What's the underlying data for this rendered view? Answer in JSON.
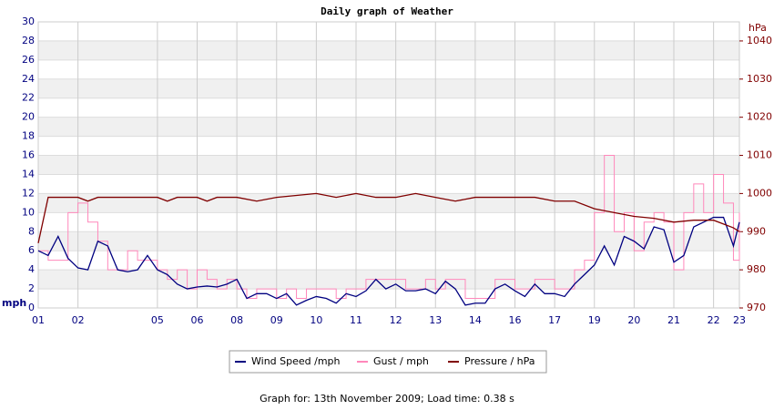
{
  "chart_data": {
    "type": "line",
    "title": "Daily graph of Weather",
    "ylabel": "mph",
    "y2label": "hPa",
    "grid": true,
    "legend": "bottom",
    "footer": "Graph for: 13th November 2009; Load time: 0.38 s",
    "xlim": [
      0,
      17.65
    ],
    "xticks": [
      {
        "value": 0,
        "label": "01"
      },
      {
        "value": 1,
        "label": "02"
      },
      {
        "value": 3,
        "label": "05"
      },
      {
        "value": 4,
        "label": "06"
      },
      {
        "value": 5,
        "label": "08"
      },
      {
        "value": 6,
        "label": "09"
      },
      {
        "value": 7,
        "label": "10"
      },
      {
        "value": 8,
        "label": "11"
      },
      {
        "value": 9,
        "label": "12"
      },
      {
        "value": 10,
        "label": "13"
      },
      {
        "value": 11,
        "label": "14"
      },
      {
        "value": 12,
        "label": "16"
      },
      {
        "value": 13,
        "label": "17"
      },
      {
        "value": 14,
        "label": "19"
      },
      {
        "value": 15,
        "label": "20"
      },
      {
        "value": 16,
        "label": "21"
      },
      {
        "value": 17,
        "label": "22"
      },
      {
        "value": 17.65,
        "label": "23"
      }
    ],
    "ylim": [
      0,
      30
    ],
    "yticks": [
      0,
      2,
      4,
      6,
      8,
      10,
      12,
      14,
      16,
      18,
      20,
      22,
      24,
      26,
      28,
      30
    ],
    "y2lim": [
      970,
      1045
    ],
    "y2ticks": [
      970,
      980,
      990,
      1000,
      1010,
      1020,
      1030,
      1040
    ],
    "series": [
      {
        "name": "Wind Speed /mph",
        "color": "#000080",
        "x": [
          0,
          0.25,
          0.5,
          0.75,
          1,
          1.25,
          1.5,
          1.75,
          2,
          2.25,
          2.5,
          2.75,
          3,
          3.25,
          3.5,
          3.75,
          4,
          4.25,
          4.5,
          4.75,
          5,
          5.25,
          5.5,
          5.75,
          6,
          6.25,
          6.5,
          6.75,
          7,
          7.25,
          7.5,
          7.75,
          8,
          8.25,
          8.5,
          8.75,
          9,
          9.25,
          9.5,
          9.75,
          10,
          10.25,
          10.5,
          10.75,
          11,
          11.25,
          11.5,
          11.75,
          12,
          12.25,
          12.5,
          12.75,
          13,
          13.25,
          13.5,
          13.75,
          14,
          14.25,
          14.5,
          14.75,
          15,
          15.25,
          15.5,
          15.75,
          16,
          16.25,
          16.5,
          16.75,
          17,
          17.25,
          17.5,
          17.65
        ],
        "values": [
          6,
          5.5,
          7.5,
          5.2,
          4.2,
          4,
          7,
          6.5,
          4,
          3.8,
          4,
          5.5,
          4,
          3.5,
          2.5,
          2,
          2.2,
          2.3,
          2.2,
          2.5,
          3,
          1,
          1.5,
          1.5,
          1,
          1.5,
          0.3,
          0.8,
          1.2,
          1,
          0.5,
          1.5,
          1.2,
          1.8,
          3,
          2,
          2.5,
          1.8,
          1.8,
          2,
          1.5,
          2.8,
          2,
          0.3,
          0.5,
          0.5,
          2,
          2.5,
          1.8,
          1.2,
          2.5,
          1.5,
          1.5,
          1.2,
          2.5,
          3.5,
          4.5,
          6.5,
          4.5,
          7.5,
          7,
          6.2,
          8.5,
          8.2,
          4.8,
          5.5,
          8.5,
          9,
          9.5,
          9.5,
          6.5,
          9
        ]
      },
      {
        "name": "Gust / mph",
        "color": "#ff88bb",
        "step": true,
        "x": [
          0,
          0.25,
          0.5,
          0.75,
          1,
          1.25,
          1.5,
          1.75,
          2,
          2.25,
          2.5,
          2.75,
          3,
          3.25,
          3.5,
          3.75,
          4,
          4.25,
          4.5,
          4.75,
          5,
          5.25,
          5.5,
          5.75,
          6,
          6.25,
          6.5,
          6.75,
          7,
          7.25,
          7.5,
          7.75,
          8,
          8.25,
          8.5,
          8.75,
          9,
          9.25,
          9.5,
          9.75,
          10,
          10.25,
          10.5,
          10.75,
          11,
          11.25,
          11.5,
          11.75,
          12,
          12.25,
          12.5,
          12.75,
          13,
          13.25,
          13.5,
          13.75,
          14,
          14.25,
          14.5,
          14.75,
          15,
          15.25,
          15.5,
          15.75,
          16,
          16.25,
          16.5,
          16.75,
          17,
          17.25,
          17.5,
          17.65
        ],
        "values": [
          6,
          5,
          5,
          10,
          11,
          9,
          7,
          4,
          4,
          6,
          5,
          5,
          4,
          3,
          4,
          2,
          4,
          3,
          2,
          3,
          2,
          1,
          2,
          2,
          1,
          2,
          1,
          2,
          2,
          2,
          1,
          2,
          2,
          3,
          3,
          3,
          3,
          2,
          2,
          3,
          2,
          3,
          3,
          1,
          1,
          1,
          3,
          3,
          2,
          2,
          3,
          3,
          2,
          2,
          4,
          5,
          10,
          16,
          8,
          10,
          6,
          9,
          10,
          9,
          4,
          10,
          13,
          10,
          14,
          11,
          5,
          10
        ]
      },
      {
        "name": "Pressure / hPa",
        "color": "#800000",
        "axis": "y2",
        "x": [
          0,
          0.25,
          0.5,
          1,
          1.25,
          1.5,
          2,
          3,
          3.25,
          3.5,
          4,
          4.25,
          4.5,
          5,
          5.5,
          6,
          7,
          7.5,
          8,
          8.5,
          9,
          9.5,
          10,
          10.5,
          11,
          12,
          12.5,
          13,
          13.5,
          14,
          14.5,
          15,
          15.5,
          16,
          16.5,
          17,
          17.5,
          17.65
        ],
        "values": [
          987,
          999,
          999,
          999,
          998,
          999,
          999,
          999,
          998,
          999,
          999,
          998,
          999,
          999,
          998,
          999,
          1000,
          999,
          1000,
          999,
          999,
          1000,
          999,
          998,
          999,
          999,
          999,
          998,
          998,
          996,
          995,
          994,
          993.5,
          992.5,
          993,
          993,
          991,
          990
        ]
      }
    ]
  }
}
